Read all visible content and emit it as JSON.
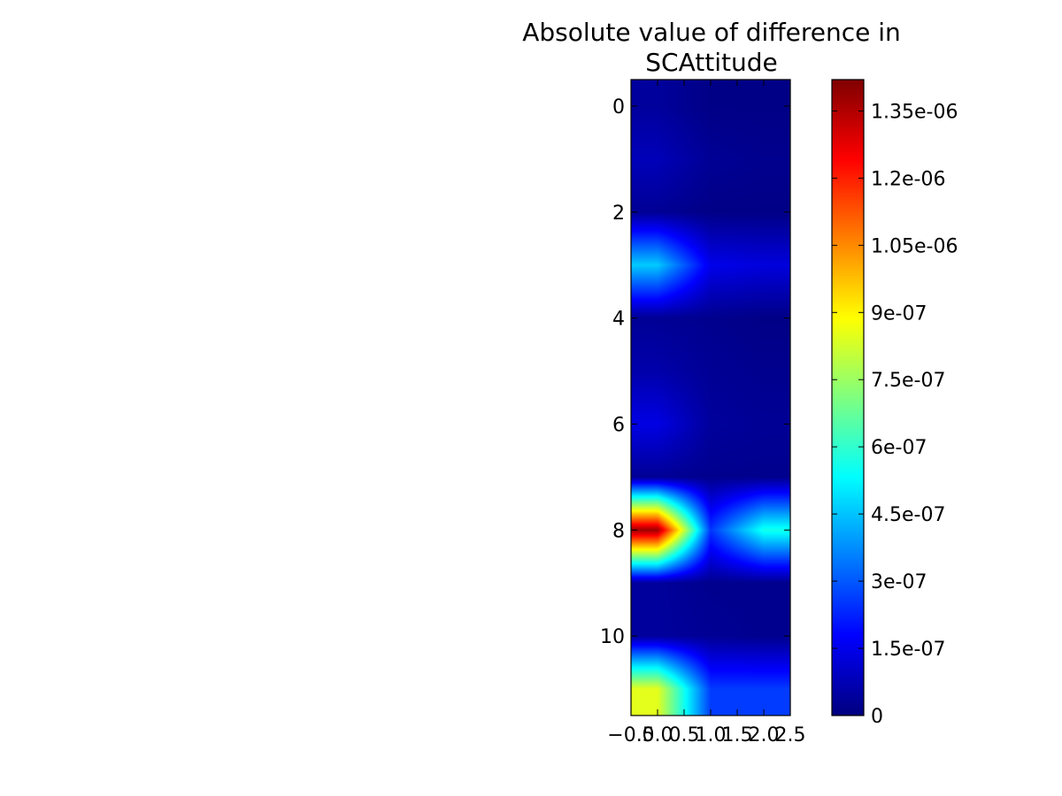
{
  "chart_data": {
    "type": "heatmap",
    "title": "Absolute value of difference in\nSCAttitude",
    "title_lines": [
      "Absolute value of difference in",
      "SCAttitude"
    ],
    "xlabel": "",
    "ylabel": "",
    "xlim": [
      -0.5,
      2.5
    ],
    "ylim": [
      11.5,
      -0.5
    ],
    "x_ticks": [
      -0.5,
      0.0,
      0.5,
      1.0,
      1.5,
      2.0,
      2.5
    ],
    "x_tick_labels": [
      "−0.5",
      "0.0",
      "0.5",
      "1.0",
      "1.5",
      "2.0",
      "2.5"
    ],
    "y_ticks": [
      0,
      2,
      4,
      6,
      8,
      10
    ],
    "y_tick_labels": [
      "0",
      "2",
      "4",
      "6",
      "8",
      "10"
    ],
    "interpolation": "bilinear",
    "colormap": "jet",
    "rows": 12,
    "cols": 3,
    "values": [
      [
        4e-08,
        1e-08,
        1e-08
      ],
      [
        8e-08,
        3e-08,
        2e-08
      ],
      [
        3e-08,
        1e-08,
        1e-08
      ],
      [
        4.6e-07,
        1.5e-07,
        1.3e-07
      ],
      [
        3e-08,
        2e-08,
        1e-08
      ],
      [
        6e-08,
        3e-08,
        2e-08
      ],
      [
        1.4e-07,
        4e-08,
        3e-08
      ],
      [
        3e-08,
        2e-08,
        2e-08
      ],
      [
        1.38e-06,
        2.5e-07,
        5.6e-07
      ],
      [
        4e-08,
        2e-08,
        2e-08
      ],
      [
        4e-08,
        3e-08,
        2e-08
      ],
      [
        8.5e-07,
        2.6e-07,
        2.6e-07
      ]
    ],
    "colorbar": {
      "min": 0,
      "max": 1.42e-06,
      "ticks": [
        0,
        1.5e-07,
        3e-07,
        4.5e-07,
        6e-07,
        7.5e-07,
        9e-07,
        1.05e-06,
        1.2e-06,
        1.35e-06
      ],
      "tick_labels": [
        "0",
        "1.5e-07",
        "3e-07",
        "4.5e-07",
        "6e-07",
        "7.5e-07",
        "9e-07",
        "1.05e-06",
        "1.2e-06",
        "1.35e-06"
      ]
    }
  }
}
